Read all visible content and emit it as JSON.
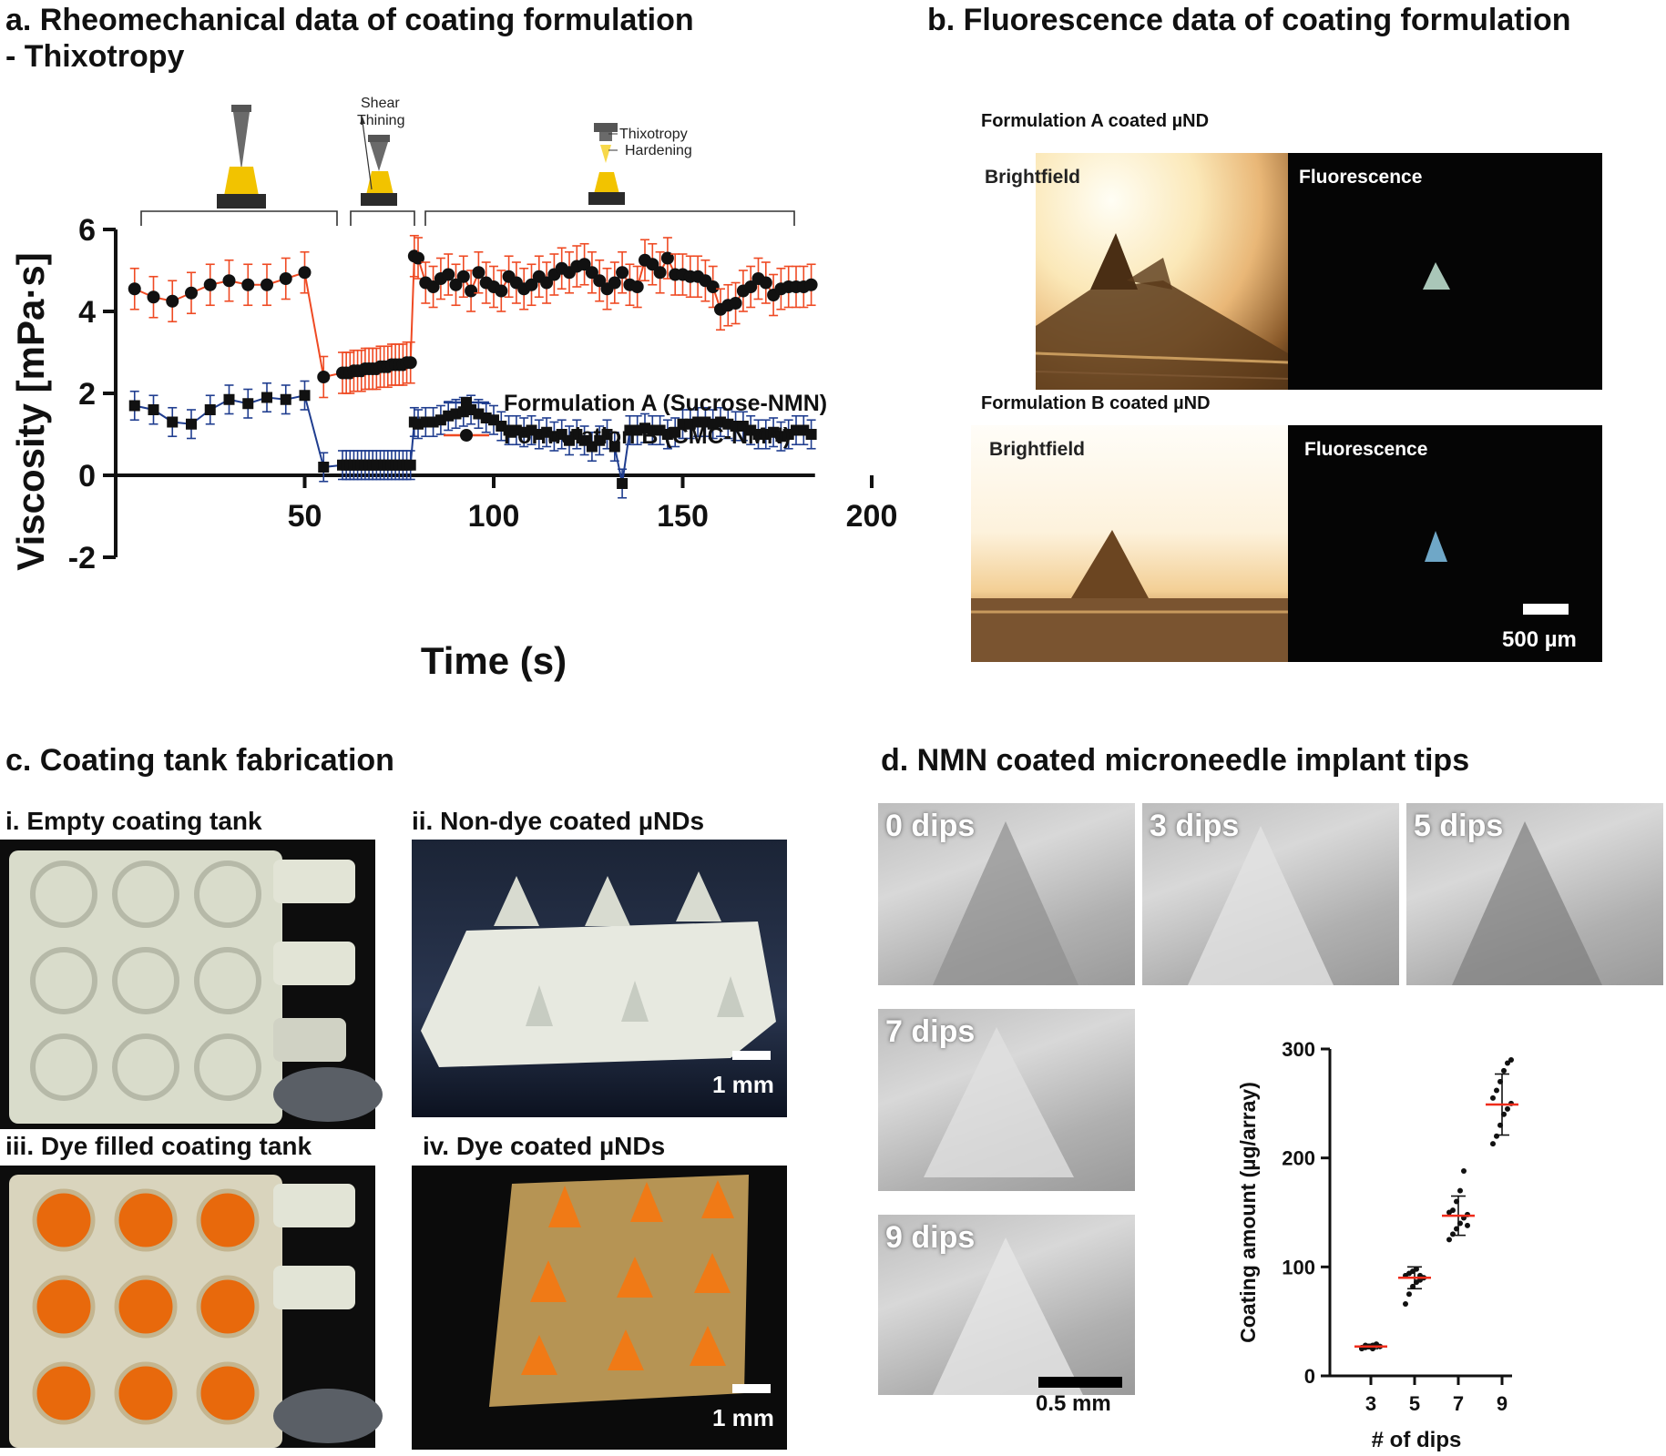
{
  "panel_a": {
    "title_line1": "a. Rheomechanical data of coating formulation",
    "title_line2": "- Thixotropy",
    "stage_labels": {
      "shear_thinning_1": "Shear",
      "shear_thinning_2": "Thining",
      "thixotropy": "Thixotropy",
      "hardening": "Hardening"
    }
  },
  "panel_b": {
    "title": "b. Fluorescence data of coating formulation",
    "row1_label": "Formulation A coated µND",
    "row2_label": "Formulation B coated µND",
    "brightfield": "Brightfield",
    "fluorescence": "Fluorescence",
    "scale": "500 µm"
  },
  "panel_c": {
    "title": "c. Coating tank fabrication",
    "i": "i. Empty coating tank",
    "ii": "ii. Non-dye coated µNDs",
    "iii": "iii. Dye filled coating tank",
    "iv": "iv. Dye coated µNDs",
    "scale": "1 mm"
  },
  "panel_d": {
    "title": "d. NMN coated microneedle implant tips",
    "sem_labels": [
      "0 dips",
      "3 dips",
      "5 dips",
      "7 dips",
      "9 dips"
    ],
    "scale": "0.5 mm"
  },
  "colors": {
    "formulation_a": "#1f3d8f",
    "formulation_b": "#ef4a23",
    "mean_line": "#ef2b1a"
  },
  "chart_data": [
    {
      "type": "line",
      "xlabel": "Time (s)",
      "ylabel": "Viscosity [mPa·s]",
      "xlim": [
        0,
        200
      ],
      "ylim": [
        -2,
        6
      ],
      "xticks": [
        50,
        100,
        150,
        200
      ],
      "yticks": [
        -2,
        0,
        2,
        4,
        6
      ],
      "legend_position": "center-right",
      "series": [
        {
          "name": "Formulation A (Sucrose-NMN)",
          "marker": "square",
          "x": [
            5,
            10,
            15,
            20,
            25,
            30,
            35,
            40,
            45,
            50,
            55,
            60,
            61,
            62,
            63,
            64,
            65,
            66,
            67,
            68,
            69,
            70,
            71,
            72,
            73,
            74,
            75,
            76,
            77,
            78,
            79,
            80,
            82,
            84,
            86,
            88,
            90,
            92,
            94,
            96,
            98,
            100,
            102,
            104,
            106,
            108,
            110,
            112,
            114,
            116,
            118,
            120,
            122,
            124,
            126,
            128,
            130,
            132,
            134,
            136,
            138,
            140,
            142,
            144,
            146,
            148,
            150,
            152,
            154,
            156,
            158,
            160,
            162,
            164,
            166,
            168,
            170,
            172,
            174,
            176,
            178,
            180,
            182,
            184
          ],
          "y": [
            1.7,
            1.6,
            1.3,
            1.25,
            1.6,
            1.85,
            1.75,
            1.9,
            1.85,
            1.95,
            0.2,
            0.25,
            0.25,
            0.25,
            0.25,
            0.25,
            0.25,
            0.25,
            0.25,
            0.25,
            0.25,
            0.25,
            0.25,
            0.25,
            0.25,
            0.25,
            0.25,
            0.25,
            0.25,
            0.25,
            1.3,
            1.25,
            1.3,
            1.3,
            1.35,
            1.45,
            1.5,
            1.55,
            1.6,
            1.5,
            1.4,
            1.35,
            1.2,
            1.1,
            1.1,
            1.05,
            1.1,
            1.0,
            1.05,
            0.95,
            1.0,
            0.85,
            1.0,
            0.85,
            0.7,
            0.85,
            1.0,
            0.7,
            -0.2,
            1.1,
            1.1,
            1.15,
            1.1,
            1.1,
            1.0,
            1.05,
            1.25,
            1.25,
            1.3,
            1.3,
            1.25,
            1.3,
            1.25,
            1.2,
            1.2,
            1.1,
            1.0,
            1.0,
            1.05,
            0.95,
            1.0,
            1.1,
            1.1,
            1.0
          ],
          "error": 0.35
        },
        {
          "name": "Formulation B (CMC-NMN)",
          "marker": "circle",
          "x": [
            5,
            10,
            15,
            20,
            25,
            30,
            35,
            40,
            45,
            50,
            55,
            60,
            61,
            62,
            63,
            64,
            65,
            66,
            67,
            68,
            69,
            70,
            71,
            72,
            73,
            74,
            75,
            76,
            77,
            78,
            79,
            80,
            82,
            84,
            86,
            88,
            90,
            92,
            94,
            96,
            98,
            100,
            102,
            104,
            106,
            108,
            110,
            112,
            114,
            116,
            118,
            120,
            122,
            124,
            126,
            128,
            130,
            132,
            134,
            136,
            138,
            140,
            142,
            144,
            146,
            148,
            150,
            152,
            154,
            156,
            158,
            160,
            162,
            164,
            166,
            168,
            170,
            172,
            174,
            176,
            178,
            180,
            182,
            184
          ],
          "y": [
            4.55,
            4.35,
            4.25,
            4.45,
            4.65,
            4.75,
            4.65,
            4.65,
            4.8,
            4.95,
            2.4,
            2.5,
            2.5,
            2.5,
            2.55,
            2.55,
            2.55,
            2.6,
            2.6,
            2.6,
            2.6,
            2.65,
            2.65,
            2.65,
            2.7,
            2.7,
            2.7,
            2.7,
            2.75,
            2.75,
            5.35,
            5.3,
            4.7,
            4.6,
            4.8,
            4.9,
            4.65,
            4.85,
            4.5,
            4.95,
            4.7,
            4.6,
            4.5,
            4.85,
            4.7,
            4.55,
            4.65,
            4.85,
            4.7,
            4.9,
            5.05,
            4.95,
            5.1,
            5.15,
            4.95,
            4.75,
            4.55,
            4.7,
            4.95,
            4.65,
            4.6,
            5.25,
            5.15,
            4.95,
            5.3,
            4.9,
            4.9,
            4.85,
            4.85,
            4.75,
            4.6,
            4.05,
            4.15,
            4.2,
            4.5,
            4.6,
            4.8,
            4.7,
            4.4,
            4.55,
            4.6,
            4.6,
            4.6,
            4.65
          ],
          "error": 0.5
        }
      ]
    },
    {
      "type": "scatter",
      "xlabel": "# of dips",
      "ylabel": "Coating amount (µg/array)",
      "ylim": [
        0,
        300
      ],
      "yticks": [
        0,
        100,
        200,
        300
      ],
      "categories": [
        "3",
        "5",
        "7",
        "9"
      ],
      "means": [
        27,
        90,
        147,
        249
      ],
      "sd": [
        2,
        10,
        18,
        28
      ],
      "points": [
        [
          25,
          26,
          27,
          28,
          29,
          27,
          26,
          28,
          27,
          25,
          29,
          27
        ],
        [
          66,
          75,
          82,
          86,
          88,
          90,
          92,
          94,
          96,
          98,
          92,
          90
        ],
        [
          125,
          130,
          135,
          140,
          145,
          148,
          150,
          152,
          160,
          170,
          188,
          138
        ],
        [
          213,
          220,
          230,
          240,
          245,
          250,
          255,
          262,
          270,
          280,
          287,
          290
        ]
      ]
    }
  ]
}
